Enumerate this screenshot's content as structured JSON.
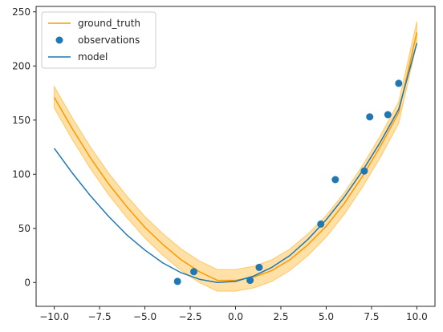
{
  "chart_data": {
    "type": "line",
    "title": "",
    "xlabel": "",
    "ylabel": "",
    "xlim": [
      -11.0,
      11.0
    ],
    "ylim": [
      -22,
      255
    ],
    "grid": false,
    "legend_position": "top-left",
    "x_ticks": [
      -10.0,
      -7.5,
      -5.0,
      -2.5,
      0.0,
      2.5,
      5.0,
      7.5,
      10.0
    ],
    "x_tick_labels": [
      "−10.0",
      "−7.5",
      "−5.0",
      "−2.5",
      "0.0",
      "2.5",
      "5.0",
      "7.5",
      "10.0"
    ],
    "y_ticks": [
      0,
      50,
      100,
      150,
      200,
      250
    ],
    "y_tick_labels": [
      "0",
      "50",
      "100",
      "150",
      "200",
      "250"
    ],
    "series": [
      {
        "name": "ground_truth",
        "kind": "line",
        "color": "#ff9900",
        "band_color": "#ffa500",
        "band_halfwidth": 10,
        "x": [
          -10,
          -9,
          -8,
          -7,
          -6,
          -5,
          -4,
          -3,
          -2,
          -1,
          0,
          1,
          2,
          3,
          4,
          5,
          6,
          7,
          8,
          9,
          10
        ],
        "y": [
          171,
          142,
          115,
          91,
          70,
          51,
          35,
          21,
          10,
          2,
          2,
          5,
          11,
          21,
          35,
          52,
          73,
          98,
          126,
          157,
          231
        ]
      },
      {
        "name": "observations",
        "kind": "scatter",
        "color": "#1f77b4",
        "x": [
          -3.2,
          -2.3,
          0.8,
          1.3,
          4.7,
          5.5,
          7.1,
          7.4,
          8.4,
          9.0
        ],
        "y": [
          1,
          10,
          2,
          14,
          54,
          95,
          103,
          153,
          155,
          184
        ]
      },
      {
        "name": "model",
        "kind": "line",
        "color": "#1f77b4",
        "x": [
          -10,
          -9,
          -8,
          -7,
          -6,
          -5,
          -4,
          -3,
          -2,
          -1,
          0,
          1,
          2,
          3,
          4,
          5,
          6,
          7,
          8,
          9,
          10
        ],
        "y": [
          124,
          101,
          80,
          61,
          44,
          30,
          18,
          9,
          3,
          0,
          1,
          6,
          14,
          25,
          40,
          58,
          79,
          103,
          130,
          160,
          221
        ]
      }
    ]
  }
}
